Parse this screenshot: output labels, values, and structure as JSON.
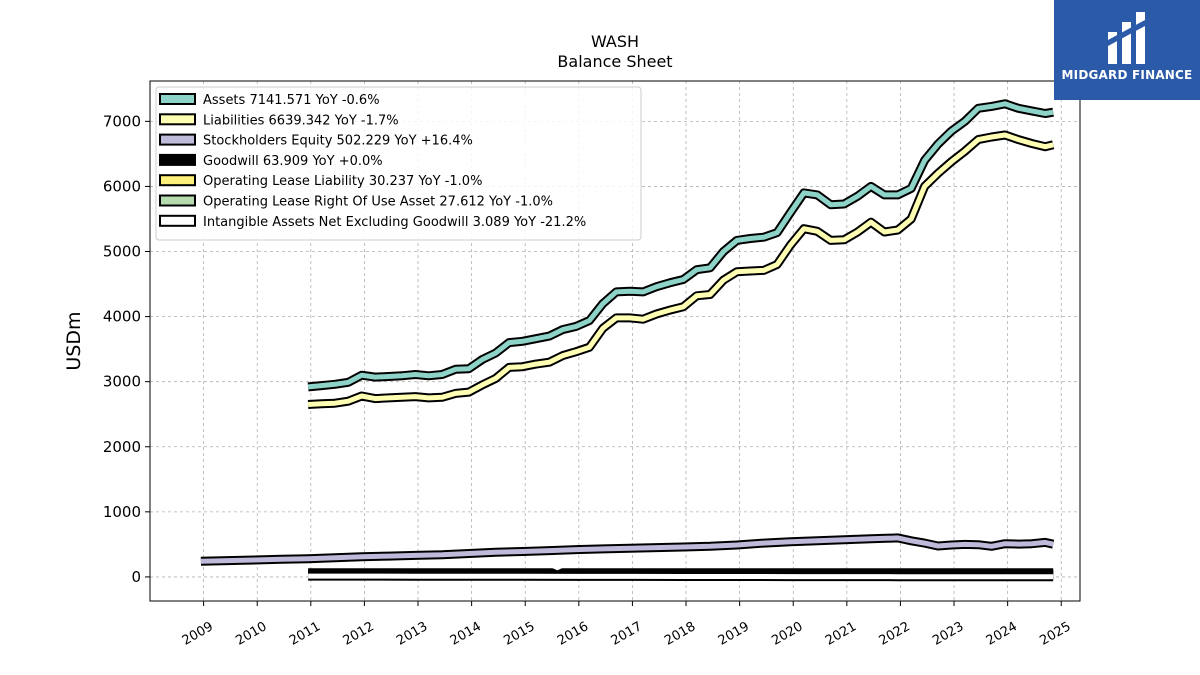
{
  "brand": {
    "name": "MIDGARD FINANCE",
    "color": "#2a5aa8"
  },
  "chart_data": {
    "type": "line",
    "title": "WASH",
    "subtitle": "Balance  Sheet",
    "ylabel": "USDm",
    "xlabel": "",
    "ylim": [
      -370,
      7620
    ],
    "xlim": [
      2008.0,
      2025.35
    ],
    "yticks": [
      0,
      1000,
      2000,
      3000,
      4000,
      5000,
      6000,
      7000
    ],
    "xticks": [
      "2009",
      "2010",
      "2011",
      "2012",
      "2013",
      "2014",
      "2015",
      "2016",
      "2017",
      "2018",
      "2019",
      "2020",
      "2021",
      "2022",
      "2023",
      "2024",
      "2025"
    ],
    "grid": true,
    "legend_position": "top-left",
    "series": [
      {
        "name": "Assets",
        "legend": "Assets  7141.571 YoY -0.6%",
        "color": "#8dd3c7",
        "x": [
          2010.95,
          2011.2,
          2011.45,
          2011.7,
          2011.95,
          2012.2,
          2012.45,
          2012.7,
          2012.95,
          2013.2,
          2013.45,
          2013.7,
          2013.95,
          2014.2,
          2014.45,
          2014.7,
          2014.95,
          2015.2,
          2015.45,
          2015.7,
          2015.95,
          2016.2,
          2016.45,
          2016.7,
          2016.95,
          2017.2,
          2017.45,
          2017.7,
          2017.95,
          2018.2,
          2018.45,
          2018.7,
          2018.95,
          2019.2,
          2019.45,
          2019.7,
          2019.95,
          2020.2,
          2020.45,
          2020.7,
          2020.95,
          2021.2,
          2021.45,
          2021.7,
          2021.95,
          2022.2,
          2022.45,
          2022.7,
          2022.95,
          2023.2,
          2023.45,
          2023.7,
          2023.95,
          2024.2,
          2024.45,
          2024.7,
          2024.85
        ],
        "values": [
          2920,
          2940,
          2960,
          2990,
          3100,
          3070,
          3080,
          3090,
          3110,
          3090,
          3110,
          3190,
          3200,
          3340,
          3440,
          3600,
          3620,
          3660,
          3700,
          3800,
          3850,
          3940,
          4200,
          4380,
          4390,
          4380,
          4460,
          4520,
          4570,
          4720,
          4750,
          5000,
          5170,
          5200,
          5220,
          5290,
          5600,
          5900,
          5870,
          5720,
          5730,
          5850,
          6000,
          5870,
          5870,
          5970,
          6400,
          6650,
          6850,
          7000,
          7200,
          7230,
          7270,
          7200,
          7160,
          7120,
          7140
        ]
      },
      {
        "name": "Liabilities",
        "legend": "Liabilities  6639.342 YoY -1.7%",
        "color": "#ffffb3",
        "x": [
          2010.95,
          2011.2,
          2011.45,
          2011.7,
          2011.95,
          2012.2,
          2012.45,
          2012.7,
          2012.95,
          2013.2,
          2013.45,
          2013.7,
          2013.95,
          2014.2,
          2014.45,
          2014.7,
          2014.95,
          2015.2,
          2015.45,
          2015.7,
          2015.95,
          2016.2,
          2016.45,
          2016.7,
          2016.95,
          2017.2,
          2017.45,
          2017.7,
          2017.95,
          2018.2,
          2018.45,
          2018.7,
          2018.95,
          2019.2,
          2019.45,
          2019.7,
          2019.95,
          2020.2,
          2020.45,
          2020.7,
          2020.95,
          2021.2,
          2021.45,
          2021.7,
          2021.95,
          2022.2,
          2022.45,
          2022.7,
          2022.95,
          2023.2,
          2023.45,
          2023.7,
          2023.95,
          2024.2,
          2024.45,
          2024.7,
          2024.85
        ],
        "values": [
          2650,
          2660,
          2670,
          2700,
          2780,
          2740,
          2750,
          2760,
          2770,
          2750,
          2760,
          2820,
          2840,
          2950,
          3050,
          3220,
          3230,
          3270,
          3300,
          3400,
          3460,
          3530,
          3820,
          3980,
          3980,
          3960,
          4040,
          4100,
          4150,
          4320,
          4340,
          4560,
          4690,
          4700,
          4710,
          4800,
          5100,
          5350,
          5310,
          5170,
          5180,
          5300,
          5450,
          5300,
          5330,
          5500,
          6000,
          6200,
          6380,
          6540,
          6720,
          6760,
          6790,
          6720,
          6660,
          6610,
          6640
        ]
      },
      {
        "name": "Stockholders Equity",
        "legend": "Stockholders Equity  502.229 YoY +16.4%",
        "color": "#bebada",
        "x": [
          2008.95,
          2009.45,
          2009.95,
          2010.45,
          2010.95,
          2011.45,
          2011.95,
          2012.45,
          2012.95,
          2013.45,
          2013.95,
          2014.45,
          2014.95,
          2015.45,
          2015.95,
          2016.45,
          2016.95,
          2017.45,
          2017.95,
          2018.45,
          2018.95,
          2019.45,
          2019.95,
          2020.45,
          2020.95,
          2021.45,
          2021.95,
          2022.2,
          2022.45,
          2022.7,
          2022.95,
          2023.2,
          2023.45,
          2023.7,
          2023.95,
          2024.2,
          2024.45,
          2024.7,
          2024.85
        ],
        "values": [
          240,
          250,
          260,
          270,
          280,
          295,
          310,
          320,
          330,
          340,
          360,
          380,
          390,
          405,
          420,
          430,
          440,
          450,
          460,
          470,
          490,
          520,
          540,
          555,
          570,
          585,
          600,
          555,
          520,
          475,
          490,
          500,
          495,
          470,
          510,
          505,
          510,
          530,
          502
        ]
      },
      {
        "name": "Goodwill",
        "legend": "Goodwill  63.909 YoY +0.0%",
        "color": "#000000",
        "x": [
          2010.95,
          2011.95,
          2012.95,
          2013.95,
          2014.95,
          2015.5,
          2015.6,
          2015.7,
          2016.95,
          2017.95,
          2018.95,
          2019.95,
          2020.95,
          2021.95,
          2022.95,
          2023.95,
          2024.85
        ],
        "values": [
          64,
          64,
          64,
          64,
          64,
          64,
          25,
          64,
          64,
          64,
          64,
          64,
          64,
          64,
          64,
          64,
          64
        ]
      },
      {
        "name": "Operating Lease Liability",
        "legend": "Operating Lease Liability  30.237 YoY -1.0%",
        "color": "#fdf07a",
        "x": [
          2018.95,
          2019.45,
          2019.95,
          2020.95,
          2021.95,
          2022.95,
          2023.95,
          2024.85
        ],
        "values": [
          30,
          32,
          32,
          31,
          31,
          30,
          31,
          30
        ]
      },
      {
        "name": "Operating Lease Right Of Use Asset",
        "legend": "Operating Lease Right Of Use Asset  27.612 YoY -1.0%",
        "color": "#b6dbae",
        "x": [
          2018.95,
          2019.45,
          2019.95,
          2020.95,
          2021.95,
          2022.95,
          2023.95,
          2024.85
        ],
        "values": [
          28,
          29,
          29,
          28,
          28,
          28,
          28,
          28
        ]
      },
      {
        "name": "Intangible Assets Net Excluding Goodwill",
        "legend": "Intangible Assets Net Excluding Goodwill  3.089 YoY -21.2%",
        "color": "#ffffff",
        "x": [
          2010.95,
          2011.95,
          2012.95,
          2013.95,
          2014.95,
          2015.95,
          2016.95,
          2017.95,
          2018.95,
          2019.95,
          2020.95,
          2021.95,
          2022.95,
          2023.95,
          2024.85
        ],
        "values": [
          12,
          12,
          11,
          10,
          9,
          8,
          8,
          7,
          6,
          5,
          5,
          4,
          4,
          4,
          3
        ]
      }
    ]
  }
}
